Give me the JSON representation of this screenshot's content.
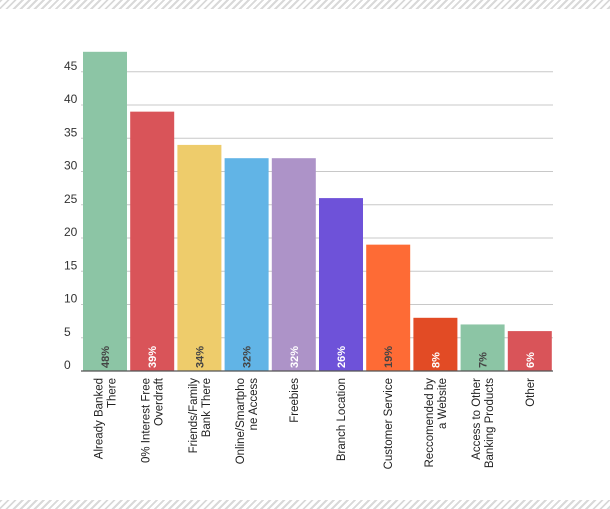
{
  "chart_data": {
    "type": "bar",
    "categories": [
      [
        "Already Banked",
        "There"
      ],
      [
        "0% Interest Free",
        "Overdraft"
      ],
      [
        "Friends/Family",
        "Bank There"
      ],
      [
        "Online/Smartpho",
        "ne Access"
      ],
      [
        "Freebies"
      ],
      [
        "Branch Location"
      ],
      [
        "Customer Service"
      ],
      [
        "Reccomended by",
        "a Website"
      ],
      [
        "Access to Other",
        "Banking Products"
      ],
      [
        "Other"
      ]
    ],
    "values": [
      48,
      39,
      34,
      32,
      32,
      26,
      19,
      8,
      7,
      6
    ],
    "value_labels": [
      "48%",
      "39%",
      "34%",
      "32%",
      "32%",
      "26%",
      "19%",
      "8%",
      "7%",
      "6%"
    ],
    "colors": [
      "#8cc5a5",
      "#d95459",
      "#eecc6b",
      "#61b4e6",
      "#ad93c8",
      "#6e52d9",
      "#fe6b35",
      "#e24b25",
      "#8cc5a5",
      "#d95459"
    ],
    "label_colors": [
      "#444444",
      "#ffffff",
      "#444444",
      "#444444",
      "#ffffff",
      "#ffffff",
      "#444444",
      "#ffffff",
      "#444444",
      "#ffffff"
    ],
    "yticks": [
      "0",
      "5",
      "10",
      "15",
      "20",
      "25",
      "30",
      "35",
      "40",
      "45"
    ],
    "ylim": [
      0,
      48
    ],
    "grid": true,
    "title": "",
    "xlabel": "",
    "ylabel": ""
  }
}
